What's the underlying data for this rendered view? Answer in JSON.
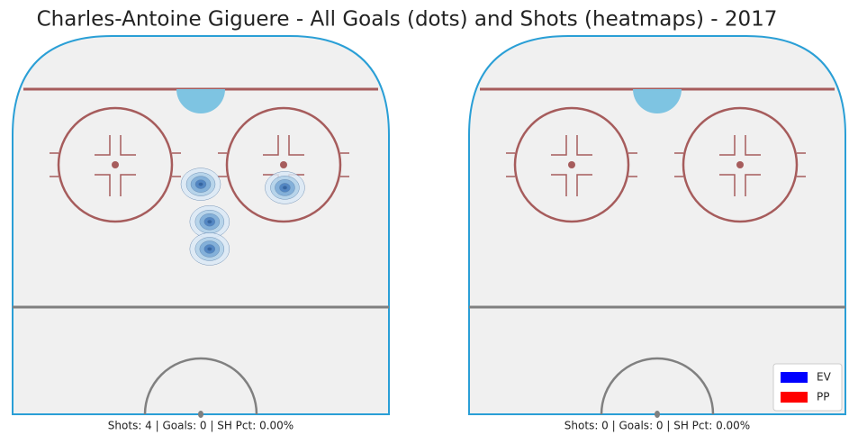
{
  "title": "Charles-Antoine Giguere - All Goals (dots) and Shots (heatmaps) - 2017",
  "chart_data": [
    {
      "type": "heatmap",
      "caption": "Shots: 4 | Goals: 0 | SH Pct: 0.00%",
      "xlim": [
        -42.5,
        42.5
      ],
      "ylim": [
        -6.5,
        104.5
      ],
      "x": [
        0,
        19,
        2,
        2
      ],
      "y": [
        61,
        60,
        50,
        42
      ]
    },
    {
      "type": "heatmap",
      "caption": "Shots: 0 | Goals: 0 | SH Pct: 0.00%",
      "xlim": [
        -42.5,
        42.5
      ],
      "ylim": [
        -6.5,
        104.5
      ],
      "x": [],
      "y": [],
      "legend": [
        {
          "name": "EV",
          "color": "#0000ff"
        },
        {
          "name": "PP",
          "color": "#ff0000"
        }
      ],
      "legend_position": "lower right"
    }
  ]
}
